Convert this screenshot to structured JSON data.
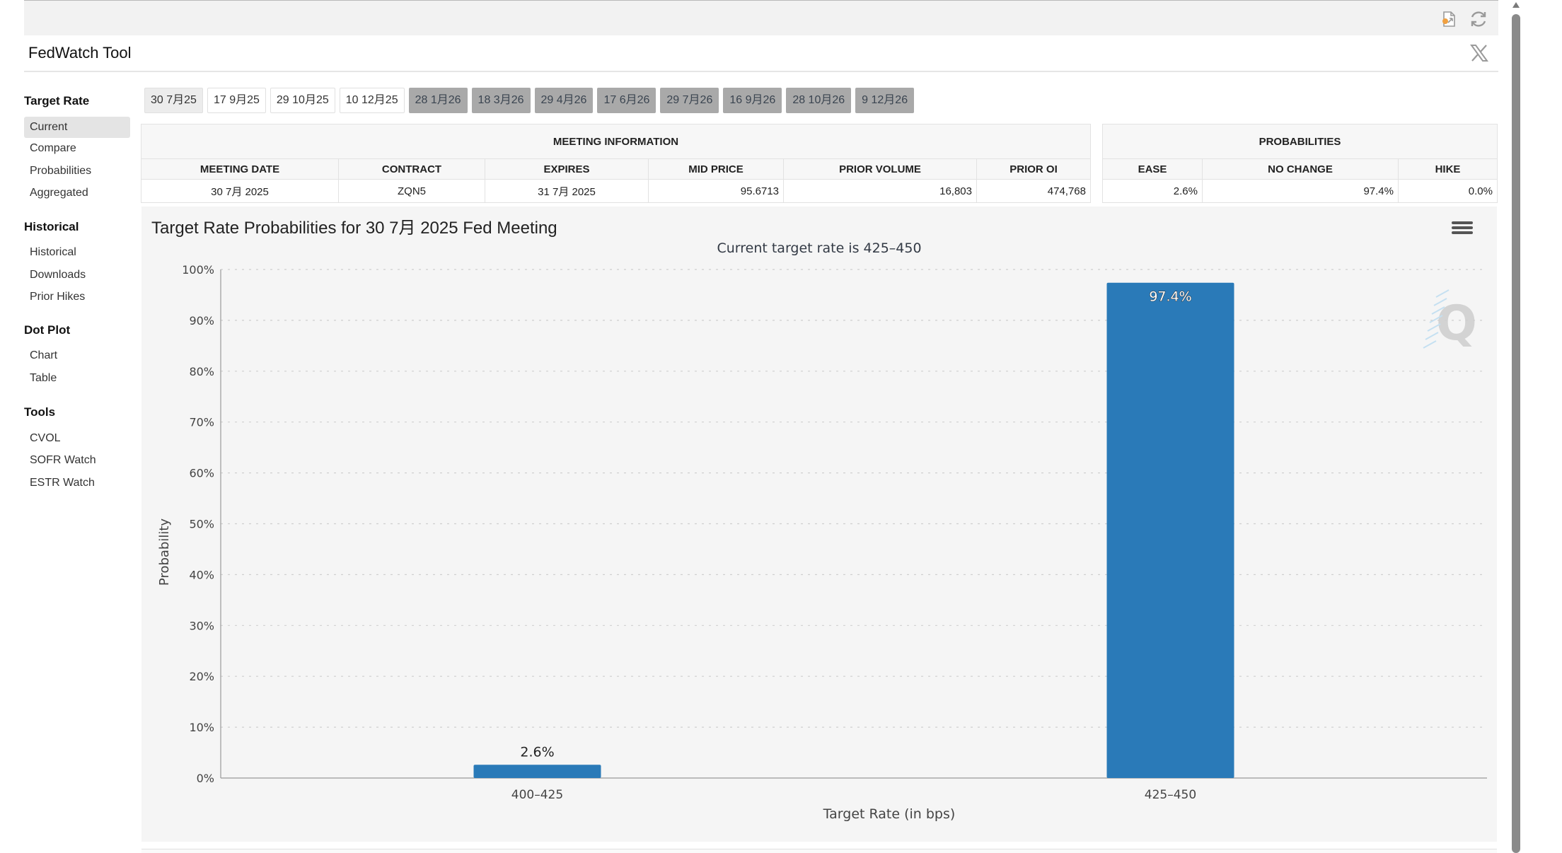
{
  "app": {
    "title": "FedWatch Tool"
  },
  "toolbar": {
    "export_icon": "export-document-icon",
    "refresh_icon": "refresh-icon",
    "close_icon": "x-logo-icon"
  },
  "sidebar": {
    "sections": [
      {
        "heading": "Target Rate",
        "items": [
          "Current",
          "Compare",
          "Probabilities",
          "Aggregated"
        ]
      },
      {
        "heading": "Historical",
        "items": [
          "Historical",
          "Downloads",
          "Prior Hikes"
        ]
      },
      {
        "heading": "Dot Plot",
        "items": [
          "Chart",
          "Table"
        ]
      },
      {
        "heading": "Tools",
        "items": [
          "CVOL",
          "SOFR Watch",
          "ESTR Watch"
        ]
      }
    ],
    "active": "Current"
  },
  "meeting_tabs": [
    "30 7月25",
    "17 9月25",
    "29 10月25",
    "10 12月25",
    "28 1月26",
    "18 3月26",
    "29 4月26",
    "17 6月26",
    "29 7月26",
    "16 9月26",
    "28 10月26",
    "9 12月26"
  ],
  "meeting_info": {
    "caption": "MEETING INFORMATION",
    "headers": [
      "MEETING DATE",
      "CONTRACT",
      "EXPIRES",
      "MID PRICE",
      "PRIOR VOLUME",
      "PRIOR OI"
    ],
    "row": [
      "30 7月 2025",
      "ZQN5",
      "31 7月 2025",
      "95.6713",
      "16,803",
      "474,768"
    ]
  },
  "probabilities": {
    "caption": "PROBABILITIES",
    "headers": [
      "EASE",
      "NO CHANGE",
      "HIKE"
    ],
    "row": [
      "2.6%",
      "97.4%",
      "0.0%"
    ]
  },
  "chart": {
    "title": "Target Rate Probabilities for 30 7月 2025 Fed Meeting",
    "subtitle": "Current target rate is 425–450",
    "menu_icon": "hamburger-menu-icon",
    "watermark_icon": "q-logo-icon"
  },
  "chart_data": {
    "type": "bar",
    "categories": [
      "400–425",
      "425–450"
    ],
    "values": [
      2.6,
      97.4
    ],
    "data_labels": [
      "2.6%",
      "97.4%"
    ],
    "xlabel": "Target Rate (in bps)",
    "ylabel": "Probability",
    "ylim": [
      0,
      100
    ],
    "yticks": [
      "0%",
      "10%",
      "20%",
      "30%",
      "40%",
      "50%",
      "60%",
      "70%",
      "80%",
      "90%",
      "100%"
    ],
    "grid": true,
    "bar_color": "#2a7ab8"
  }
}
